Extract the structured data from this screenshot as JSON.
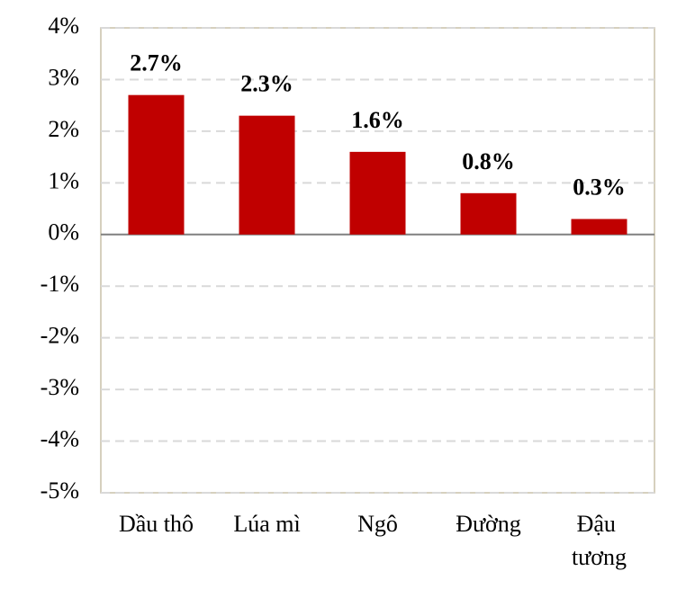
{
  "chart_data": {
    "type": "bar",
    "categories": [
      "Dầu thô",
      "Lúa mì",
      "Ngô",
      "Đường",
      "Đậu tương"
    ],
    "values": [
      2.7,
      2.3,
      1.6,
      0.8,
      0.3
    ],
    "value_labels": [
      "2.7%",
      "2.3%",
      "1.6%",
      "0.8%",
      "0.3%"
    ],
    "color": "#c00000",
    "ylim": [
      -5,
      4
    ],
    "yticks": [
      {
        "value": -5,
        "label": "-5%"
      },
      {
        "value": -4,
        "label": "-4%"
      },
      {
        "value": -3,
        "label": "-3%"
      },
      {
        "value": -2,
        "label": "-2%"
      },
      {
        "value": -1,
        "label": "-1%"
      },
      {
        "value": 0,
        "label": "0%"
      },
      {
        "value": 1,
        "label": "1%"
      },
      {
        "value": 2,
        "label": "2%"
      },
      {
        "value": 3,
        "label": "3%"
      },
      {
        "value": 4,
        "label": "4%"
      }
    ],
    "grid": true
  }
}
